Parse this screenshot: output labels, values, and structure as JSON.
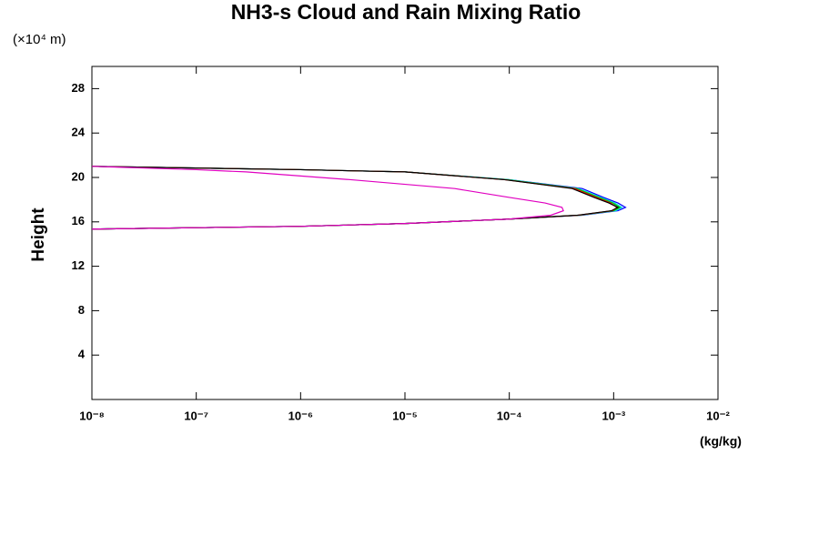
{
  "chart_data": {
    "type": "line",
    "title": "NH3-s Cloud and Rain Mixing Ratio",
    "y_unit": "(×10⁴ m)",
    "y_label": "Height",
    "x_unit": "(kg/kg)",
    "xscale": "log",
    "xlim": [
      1e-08,
      0.01
    ],
    "xticks": [
      {
        "value": 1e-08,
        "label": "10⁻⁸"
      },
      {
        "value": 1e-07,
        "label": "10⁻⁷"
      },
      {
        "value": 1e-06,
        "label": "10⁻⁶"
      },
      {
        "value": 1e-05,
        "label": "10⁻⁵"
      },
      {
        "value": 0.0001,
        "label": "10⁻⁴"
      },
      {
        "value": 0.001,
        "label": "10⁻³"
      },
      {
        "value": 0.01,
        "label": "10⁻²"
      }
    ],
    "ylim": [
      0,
      30
    ],
    "yticks": [
      4,
      8,
      12,
      16,
      20,
      24,
      28
    ],
    "y": [
      15.35,
      15.6,
      15.85,
      16.25,
      16.6,
      17.0,
      17.3,
      17.7,
      18.2,
      19.0,
      19.8,
      20.5,
      20.7,
      21.0
    ],
    "series": [
      {
        "color": "#0000ff",
        "values": [
          1e-08,
          1e-06,
          1e-05,
          0.0001,
          0.0005,
          0.0011,
          0.0013,
          0.0011,
          0.0008,
          0.0005,
          0.0001,
          1e-05,
          1e-06,
          1e-08
        ]
      },
      {
        "color": "#00e0e0",
        "values": [
          1e-08,
          1e-06,
          1e-05,
          0.0001,
          0.00048,
          0.00105,
          0.0012,
          0.00102,
          0.00075,
          0.00046,
          0.0001,
          1e-05,
          1e-06,
          1e-08
        ]
      },
      {
        "color": "#00c000",
        "values": [
          1e-08,
          1e-06,
          1e-05,
          0.0001,
          0.00047,
          0.001,
          0.00115,
          0.00098,
          0.00072,
          0.00044,
          9.5e-05,
          1e-05,
          1e-06,
          1e-08
        ]
      },
      {
        "color": "#ff0000",
        "values": [
          1e-08,
          1e-06,
          1e-05,
          0.0001,
          0.00046,
          0.00097,
          0.00108,
          0.00093,
          0.00068,
          0.00042,
          9e-05,
          1e-05,
          1e-06,
          1e-08
        ]
      },
      {
        "color": "#000000",
        "values": [
          1e-08,
          1e-06,
          1e-05,
          0.0001,
          0.00045,
          0.00095,
          0.0011,
          0.0009,
          0.00065,
          0.0004,
          9e-05,
          1e-05,
          1e-06,
          1e-08
        ]
      },
      {
        "color": "#e000c0",
        "values": [
          1e-08,
          1e-06,
          1e-05,
          0.0001,
          0.00025,
          0.00033,
          0.00032,
          0.00022,
          0.0001,
          3e-05,
          3e-06,
          3e-07,
          1e-07,
          1e-08
        ]
      }
    ]
  }
}
